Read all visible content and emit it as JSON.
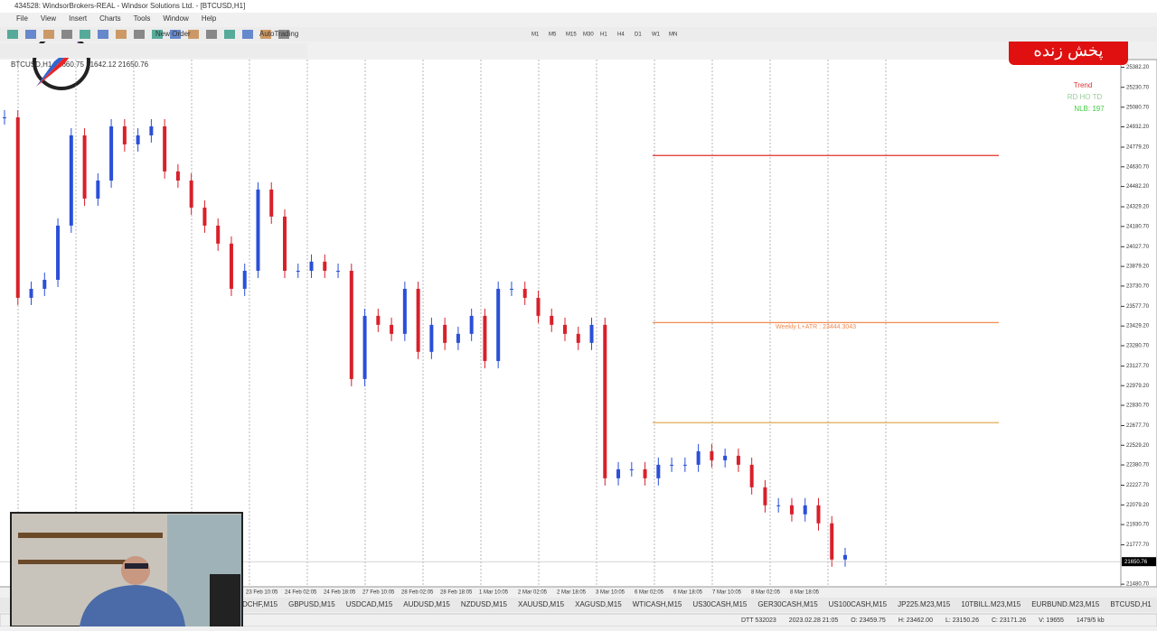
{
  "window": {
    "title": "434528: WindsorBrokers-REAL - Windsor Solutions Ltd. - [BTCUSD,H1]"
  },
  "menu": [
    "File",
    "View",
    "Insert",
    "Charts",
    "Tools",
    "Window",
    "Help"
  ],
  "toolbar": {
    "new_order": "New Order",
    "auto_trading": "AutoTrading",
    "timeframes": [
      "M1",
      "M5",
      "M15",
      "M30",
      "H1",
      "H4",
      "D1",
      "W1",
      "MN"
    ]
  },
  "badge": "پخش زنده",
  "indicator": {
    "title": "Trend",
    "flags": "RD HO TD",
    "nlb": "NLB: 197"
  },
  "chart_data": {
    "type": "candlestick",
    "header": "BTCUSD,H1  21660.75 21642.12 21650.76",
    "closes": [
      25004,
      23642,
      23710,
      23778,
      24187,
      24868,
      24391,
      24527,
      24936,
      24800,
      24868,
      24936,
      24596,
      24527,
      24323,
      24187,
      24051,
      23710,
      23846,
      24459,
      24255,
      23846,
      23846,
      23915,
      23846,
      23846,
      23029,
      23506,
      23438,
      23370,
      23710,
      23234,
      23438,
      23302,
      23370,
      23506,
      23165,
      23710,
      23710,
      23642,
      23506,
      23438,
      23370,
      23302,
      23438,
      22280,
      22348,
      22348,
      22280,
      22382,
      22382,
      22382,
      22484,
      22416,
      22450,
      22382,
      22212,
      22076,
      22076,
      22008,
      22076,
      21940,
      21667,
      21701
    ],
    "ylim": [
      21400,
      25440
    ],
    "yticks": [
      {
        "value": 25382.2,
        "label": "25382.20"
      },
      {
        "value": 25230.7,
        "label": "25230.70"
      },
      {
        "value": 25080.7,
        "label": "25080.70"
      },
      {
        "value": 24932.2,
        "label": "24932.20"
      },
      {
        "value": 24779.2,
        "label": "24779.20"
      },
      {
        "value": 24630.7,
        "label": "24630.70"
      },
      {
        "value": 24482.2,
        "label": "24482.20"
      },
      {
        "value": 24329.2,
        "label": "24329.20"
      },
      {
        "value": 24180.7,
        "label": "24180.70"
      },
      {
        "value": 24027.7,
        "label": "24027.70"
      },
      {
        "value": 23879.2,
        "label": "23879.20"
      },
      {
        "value": 23730.7,
        "label": "23730.70"
      },
      {
        "value": 23577.7,
        "label": "23577.70"
      },
      {
        "value": 23429.2,
        "label": "23429.20"
      },
      {
        "value": 23280.7,
        "label": "23280.70"
      },
      {
        "value": 23127.7,
        "label": "23127.70"
      },
      {
        "value": 22979.2,
        "label": "22979.20"
      },
      {
        "value": 22830.7,
        "label": "22830.70"
      },
      {
        "value": 22677.7,
        "label": "22677.70"
      },
      {
        "value": 22529.2,
        "label": "22529.20"
      },
      {
        "value": 22380.7,
        "label": "22380.70"
      },
      {
        "value": 22227.7,
        "label": "22227.70"
      },
      {
        "value": 22079.2,
        "label": "22079.20"
      },
      {
        "value": 21930.7,
        "label": "21930.70"
      },
      {
        "value": 21777.7,
        "label": "21777.70"
      },
      {
        "value": 21480.7,
        "label": "21480.70"
      }
    ],
    "current": {
      "value": 21650.76,
      "label": "21650.76"
    },
    "levels": [
      {
        "value": 24716,
        "color": "#e0302a"
      },
      {
        "value": 23455,
        "color": "#f08a50",
        "label": "Weekly L+ATR : 23444.3043"
      },
      {
        "value": 22700,
        "color": "#e0a040"
      }
    ],
    "xticks": [
      "23 Feb 10:05",
      "24 Feb 02:05",
      "24 Feb 18:05",
      "27 Feb 10:05",
      "28 Feb 02:05",
      "28 Feb 18:05",
      "1 Mar 10:05",
      "2 Mar 02:05",
      "2 Mar 18:05",
      "3 Mar 10:05",
      "6 Mar 02:05",
      "6 Mar 18:05",
      "7 Mar 10:05",
      "8 Mar 02:05",
      "8 Mar 18:05"
    ]
  },
  "tabs": [
    "DCHF,M15",
    "GBPUSD,M15",
    "USDCAD,M15",
    "AUDUSD,M15",
    "NZDUSD,M15",
    "XAUUSD,M15",
    "XAGUSD,M15",
    "WTICASH,M15",
    "US30CASH,M15",
    "GER30CASH,M15",
    "US100CASH,M15",
    "JP225.M23,M15",
    "10TBILL.M23,M15",
    "EURBUND.M23,M15",
    "BTCUSD,H1"
  ],
  "status": [
    "DTT 532023",
    "2023.02.28 21:05",
    "O: 23459.75",
    "H: 23462.00",
    "L: 23150.26",
    "C: 23171.26",
    "V: 19655",
    "1479/5 kb"
  ]
}
